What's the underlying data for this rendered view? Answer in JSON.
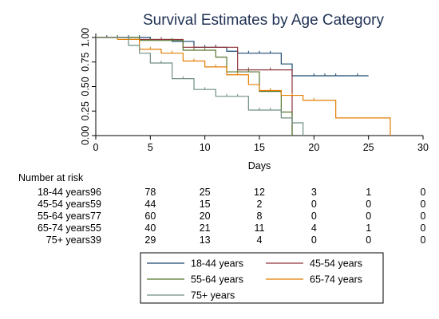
{
  "chart_data": {
    "type": "line",
    "subtype": "kaplan-meier-step",
    "title": "Survival Estimates by Age Category",
    "xlabel": "Days",
    "ylabel": "",
    "xlim": [
      0,
      30
    ],
    "ylim": [
      0,
      1
    ],
    "x_ticks": [
      0,
      5,
      10,
      15,
      20,
      25,
      30
    ],
    "y_ticks": [
      "0.00",
      "0.25",
      "0.50",
      "0.75",
      "1.00"
    ],
    "y_tick_values": [
      0,
      0.25,
      0.5,
      0.75,
      1
    ],
    "grid": false,
    "legend_position": "bottom",
    "series": [
      {
        "name": "18-44 years",
        "color": "#1a476f",
        "steps": [
          [
            0,
            1
          ],
          [
            5,
            0.98
          ],
          [
            7,
            0.96
          ],
          [
            9,
            0.9
          ],
          [
            12,
            0.86
          ],
          [
            13,
            0.84
          ],
          [
            17,
            0.73
          ],
          [
            18,
            0.61
          ],
          [
            25,
            0.61
          ]
        ],
        "censor_x": [
          1,
          2,
          3,
          4,
          5,
          6,
          7,
          8,
          10,
          11,
          12,
          14,
          15,
          16,
          20,
          21,
          22,
          24
        ],
        "end_x": 25
      },
      {
        "name": "45-54 years",
        "color": "#90353b",
        "steps": [
          [
            0,
            1
          ],
          [
            3,
            0.98
          ],
          [
            8,
            0.9
          ],
          [
            13,
            0.67
          ],
          [
            18,
            0
          ]
        ],
        "censor_x": [
          1,
          4,
          6,
          9,
          11,
          14,
          16
        ],
        "end_x": 18
      },
      {
        "name": "55-64 years",
        "color": "#55752f",
        "steps": [
          [
            0,
            1
          ],
          [
            4,
            0.97
          ],
          [
            8,
            0.87
          ],
          [
            11,
            0.8
          ],
          [
            12,
            0.65
          ],
          [
            15,
            0.45
          ],
          [
            17,
            0.24
          ],
          [
            18,
            0
          ]
        ],
        "censor_x": [
          2,
          5,
          7,
          9,
          10,
          13,
          14,
          16
        ],
        "end_x": 18
      },
      {
        "name": "65-74 years",
        "color": "#e37e00",
        "steps": [
          [
            0,
            1
          ],
          [
            2,
            0.98
          ],
          [
            4,
            0.88
          ],
          [
            6,
            0.84
          ],
          [
            8,
            0.76
          ],
          [
            10,
            0.7
          ],
          [
            12,
            0.62
          ],
          [
            14,
            0.52
          ],
          [
            15,
            0.46
          ],
          [
            17,
            0.41
          ],
          [
            19,
            0.36
          ],
          [
            22,
            0.18
          ],
          [
            27,
            0
          ]
        ],
        "censor_x": [
          3,
          5,
          7,
          9,
          11,
          13,
          16,
          18,
          20
        ],
        "end_x": 27
      },
      {
        "name": "75+ years",
        "color": "#6e8e84",
        "steps": [
          [
            0,
            1
          ],
          [
            3,
            0.92
          ],
          [
            4,
            0.84
          ],
          [
            5,
            0.74
          ],
          [
            7,
            0.58
          ],
          [
            9,
            0.47
          ],
          [
            11,
            0.4
          ],
          [
            14,
            0.26
          ],
          [
            17,
            0.18
          ],
          [
            18,
            0.13
          ],
          [
            19,
            0
          ]
        ],
        "censor_x": [
          1,
          2,
          6,
          8,
          10,
          12,
          13,
          15,
          16
        ],
        "end_x": 19
      }
    ],
    "risk_table": {
      "heading": "Number at risk",
      "at_x": [
        0,
        5,
        10,
        15,
        20,
        25,
        30
      ],
      "rows": [
        {
          "label": "18-44 years",
          "values": [
            "96",
            "78",
            "25",
            "12",
            "3",
            "1",
            "0"
          ]
        },
        {
          "label": "45-54 years",
          "values": [
            "59",
            "44",
            "15",
            "2",
            "0",
            "0",
            "0"
          ]
        },
        {
          "label": "55-64 years",
          "values": [
            "77",
            "60",
            "20",
            "8",
            "0",
            "0",
            "0"
          ]
        },
        {
          "label": "65-74 years",
          "values": [
            "55",
            "40",
            "21",
            "11",
            "4",
            "1",
            "0"
          ]
        },
        {
          "label": "75+ years",
          "values": [
            "39",
            "29",
            "13",
            "4",
            "0",
            "0",
            "0"
          ]
        }
      ]
    }
  }
}
